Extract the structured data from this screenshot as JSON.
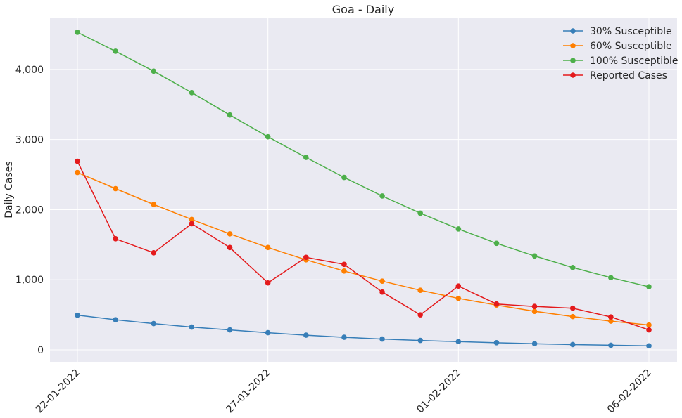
{
  "chart_data": {
    "type": "line",
    "title": "Goa - Daily",
    "xlabel": "",
    "ylabel": "Daily Cases",
    "x": [
      "22-01-2022",
      "23-01-2022",
      "24-01-2022",
      "25-01-2022",
      "26-01-2022",
      "27-01-2022",
      "28-01-2022",
      "29-01-2022",
      "30-01-2022",
      "31-01-2022",
      "01-02-2022",
      "02-02-2022",
      "03-02-2022",
      "04-02-2022",
      "05-02-2022",
      "06-02-2022"
    ],
    "x_tick_labels": [
      "22-01-2022",
      "27-01-2022",
      "01-02-2022",
      "06-02-2022"
    ],
    "y_ticks": [
      0,
      1000,
      2000,
      3000,
      4000
    ],
    "y_tick_labels": [
      "0",
      "1,000",
      "2,000",
      "3,000",
      "4,000"
    ],
    "ylim": [
      -170,
      4740
    ],
    "grid": true,
    "legend_position": "top-right",
    "colors": {
      "background": "#EAEAF2",
      "grid": "#FFFFFF"
    },
    "series": [
      {
        "name": "30% Susceptible",
        "color": "#377EB8",
        "values": [
          495,
          430,
          375,
          325,
          285,
          245,
          210,
          180,
          155,
          135,
          118,
          102,
          88,
          76,
          66,
          57
        ]
      },
      {
        "name": "60% Susceptible",
        "color": "#FF7F00",
        "values": [
          2530,
          2300,
          2075,
          1860,
          1655,
          1460,
          1285,
          1125,
          980,
          850,
          735,
          640,
          550,
          475,
          410,
          355
        ]
      },
      {
        "name": "100% Susceptible",
        "color": "#4DAF4A",
        "values": [
          4530,
          4260,
          3975,
          3670,
          3350,
          3040,
          2745,
          2460,
          2195,
          1950,
          1725,
          1520,
          1340,
          1175,
          1030,
          900
        ]
      },
      {
        "name": "Reported Cases",
        "color": "#E41A1C",
        "values": [
          2690,
          1585,
          1385,
          1800,
          1460,
          955,
          1320,
          1220,
          825,
          500,
          910,
          655,
          620,
          595,
          470,
          285
        ]
      }
    ]
  }
}
